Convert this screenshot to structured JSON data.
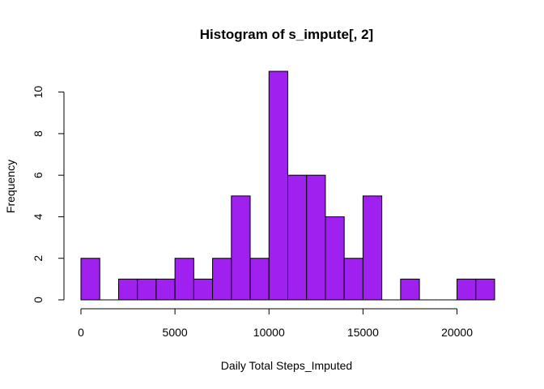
{
  "chart_data": {
    "type": "bar",
    "title": "Histogram of s_impute[, 2]",
    "xlabel": "Daily Total Steps_Imputed",
    "ylabel": "Frequency",
    "bin_edges": [
      0,
      1000,
      2000,
      3000,
      4000,
      5000,
      6000,
      7000,
      8000,
      9000,
      10000,
      11000,
      12000,
      13000,
      14000,
      15000,
      16000,
      17000,
      18000,
      19000,
      20000,
      21000,
      22000
    ],
    "values": [
      2,
      0,
      1,
      1,
      1,
      2,
      1,
      2,
      5,
      2,
      11,
      6,
      6,
      4,
      2,
      5,
      0,
      1,
      0,
      0,
      1,
      1
    ],
    "xlim": [
      0,
      22000
    ],
    "ylim": [
      0,
      11
    ],
    "x_ticks": [
      0,
      5000,
      10000,
      15000,
      20000
    ],
    "x_tick_labels": [
      "0",
      "5000",
      "10000",
      "15000",
      "20000"
    ],
    "y_ticks": [
      0,
      2,
      4,
      6,
      8,
      10
    ],
    "y_tick_labels": [
      "0",
      "2",
      "4",
      "6",
      "8",
      "10"
    ],
    "bar_color": "#a020f0",
    "grid": false
  }
}
